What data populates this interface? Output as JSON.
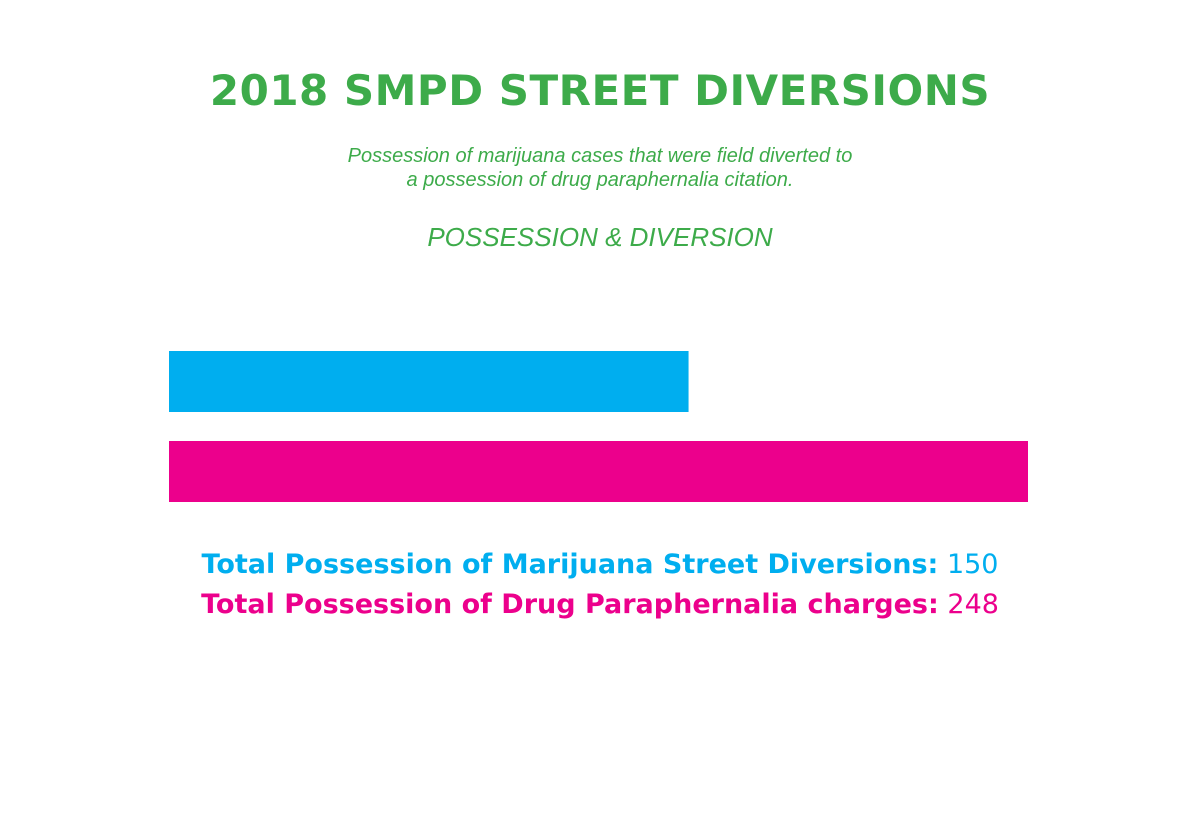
{
  "chart_data": {
    "type": "bar",
    "orientation": "horizontal",
    "title": "2018 SMPD STREET DIVERSIONS",
    "subtitle_lines": [
      "Possession of marijuana cases that were field diverted to",
      "a possession of drug paraphernalia citation."
    ],
    "heading": "POSSESSION & DIVERSION",
    "categories": [
      "Total Possession of Marijuana Street Diversions:",
      "Total Possession of Drug Paraphernalia charges:"
    ],
    "values": [
      150,
      248
    ],
    "colors": [
      "#00aeef",
      "#ec008c"
    ],
    "xlim": [
      0,
      248
    ],
    "grid": false,
    "legend": "bottom"
  }
}
